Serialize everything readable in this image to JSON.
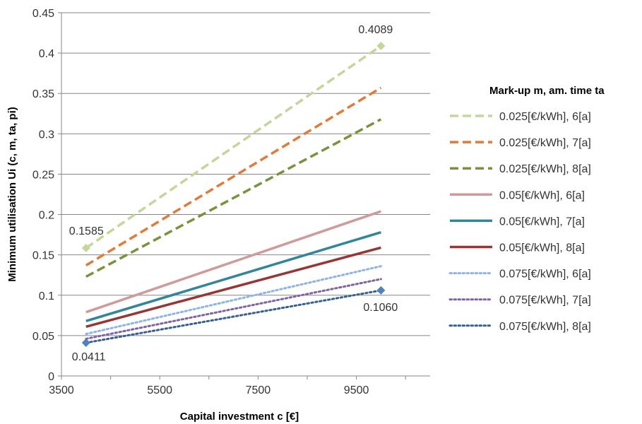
{
  "chart_data": {
    "type": "line",
    "xlabel": "Capital investment c [€]",
    "ylabel": "Minimum utilisation Ui (c, m, ta, pi)",
    "xlim": [
      3500,
      11000
    ],
    "ylim": [
      0,
      0.45
    ],
    "x_ticks": [
      "3500",
      "5500",
      "7500",
      "9500"
    ],
    "y_ticks": [
      "0",
      "0.05",
      "0.1",
      "0.15",
      "0.2",
      "0.25",
      "0.3",
      "0.35",
      "0.4",
      "0.45"
    ],
    "grid": "horizontal",
    "legend_title": "Mark-up m, am. time ta",
    "legend_position": "right",
    "series": [
      {
        "name": "0.025[€/kWh], 6[a]",
        "color": "#c3d69b",
        "style": "dashed",
        "x": [
          4000,
          10000
        ],
        "y": [
          0.1585,
          0.4089
        ]
      },
      {
        "name": "0.025[€/kWh], 7[a]",
        "color": "#e07b39",
        "style": "dashed",
        "x": [
          4000,
          10000
        ],
        "y": [
          0.137,
          0.357
        ]
      },
      {
        "name": "0.025[€/kWh], 8[a]",
        "color": "#77933c",
        "style": "dashed",
        "x": [
          4000,
          10000
        ],
        "y": [
          0.123,
          0.318
        ]
      },
      {
        "name": "0.05[€/kWh], 6[a]",
        "color": "#d19a9a",
        "style": "solid",
        "x": [
          4000,
          10000
        ],
        "y": [
          0.079,
          0.204
        ]
      },
      {
        "name": "0.05[€/kWh], 7[a]",
        "color": "#31859c",
        "style": "solid",
        "x": [
          4000,
          10000
        ],
        "y": [
          0.068,
          0.178
        ]
      },
      {
        "name": "0.05[€/kWh], 8[a]",
        "color": "#953735",
        "style": "solid",
        "x": [
          4000,
          10000
        ],
        "y": [
          0.061,
          0.159
        ]
      },
      {
        "name": "0.075[€/kWh], 6[a]",
        "color": "#8eb4e3",
        "style": "dotted",
        "x": [
          4000,
          10000
        ],
        "y": [
          0.052,
          0.136
        ]
      },
      {
        "name": "0.075[€/kWh], 7[a]",
        "color": "#8064a2",
        "style": "dotted",
        "x": [
          4000,
          10000
        ],
        "y": [
          0.046,
          0.12
        ]
      },
      {
        "name": "0.075[€/kWh], 8[a]",
        "color": "#376092",
        "style": "dotted",
        "x": [
          4000,
          10000
        ],
        "y": [
          0.0411,
          0.106
        ]
      }
    ],
    "annotations": [
      {
        "text": "0.4089",
        "x": 10000,
        "y": 0.4089,
        "marker": true,
        "color": "#c3d69b"
      },
      {
        "text": "0.1585",
        "x": 4000,
        "y": 0.1585,
        "marker": true,
        "color": "#c3d69b"
      },
      {
        "text": "0.1060",
        "x": 10000,
        "y": 0.106,
        "marker": true,
        "color": "#4f81bd"
      },
      {
        "text": "0.0411",
        "x": 4000,
        "y": 0.0411,
        "marker": true,
        "color": "#4f81bd"
      }
    ]
  }
}
